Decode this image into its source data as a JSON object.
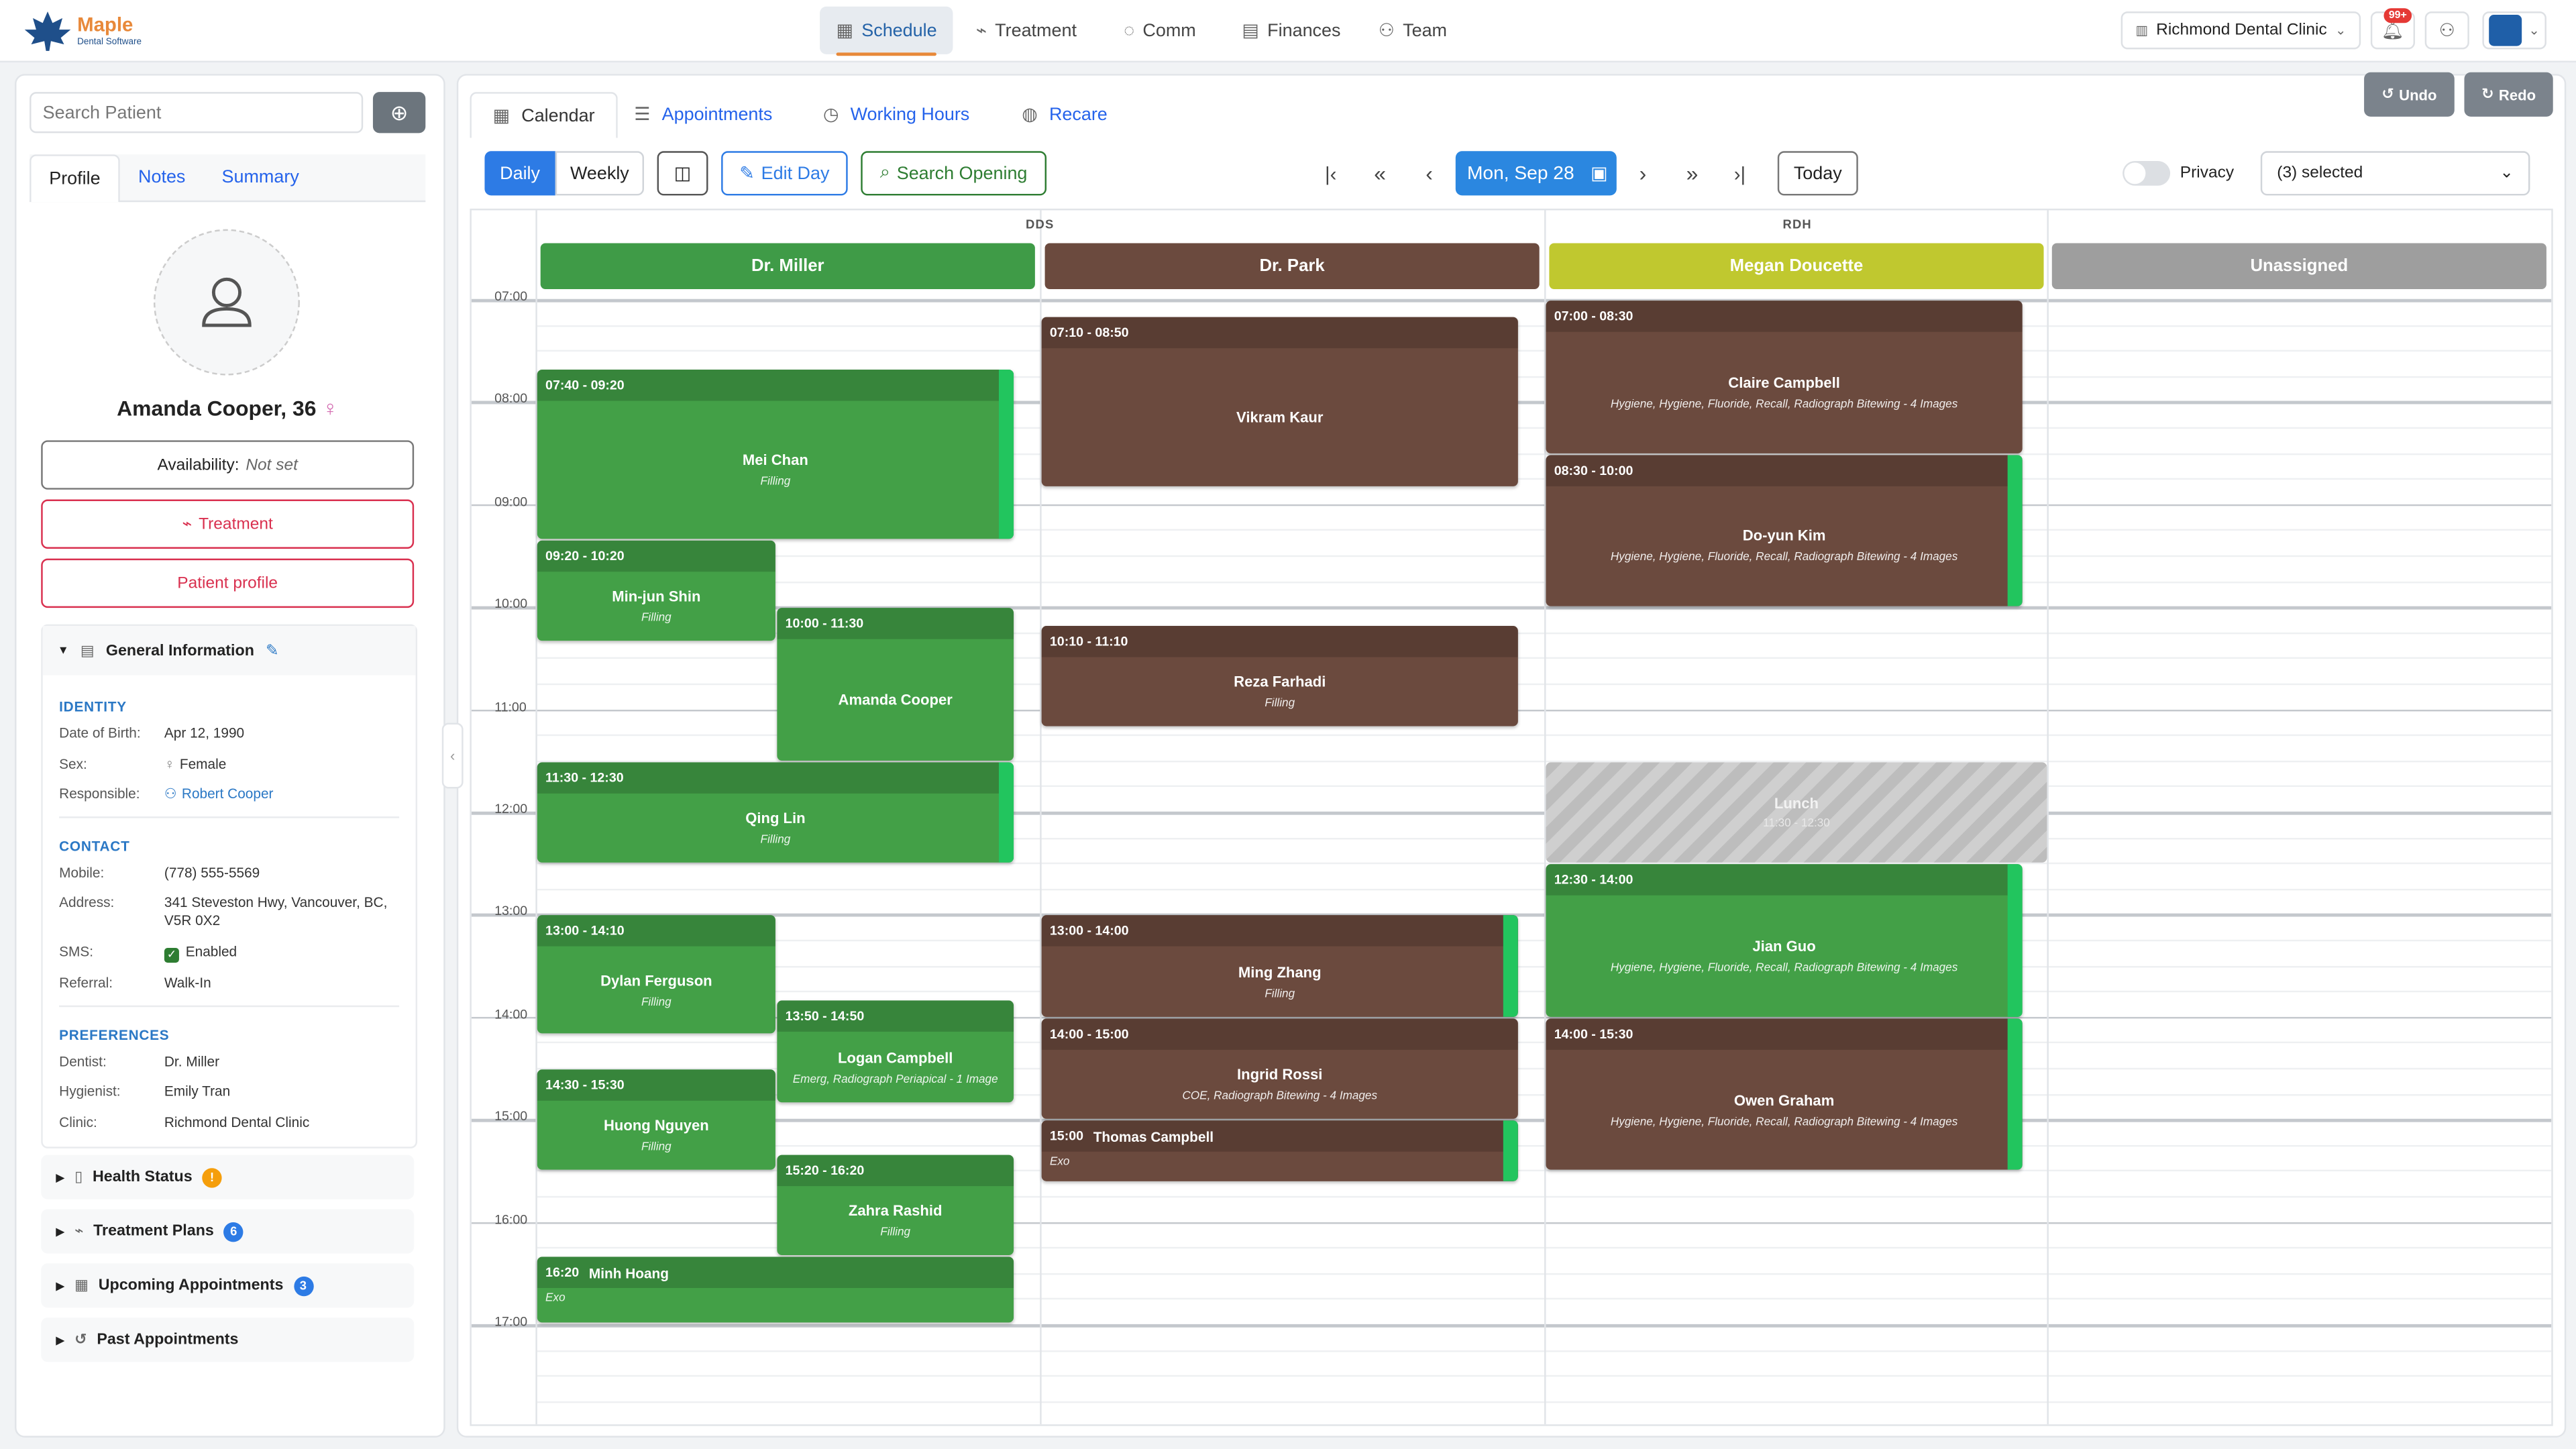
{
  "header": {
    "brand": "Maple",
    "brand_sub": "Dental Software",
    "nav": [
      "Schedule",
      "Treatment",
      "Comm",
      "Finances",
      "Team"
    ],
    "clinic": "Richmond Dental Clinic",
    "notifications": "99+"
  },
  "sidebar": {
    "search_placeholder": "Search Patient",
    "tabs": [
      "Profile",
      "Notes",
      "Summary"
    ],
    "patient_name": "Amanda Cooper, 36",
    "availability_label": "Availability:",
    "availability_value": "Not set",
    "buttons": [
      "Treatment",
      "Patient profile"
    ],
    "general_title": "General Information",
    "sections": [
      {
        "title": "IDENTITY",
        "fields": [
          [
            "Date of Birth:",
            "Apr 12, 1990"
          ],
          [
            "Sex:",
            "Female"
          ],
          [
            "Responsible:",
            "Robert Cooper"
          ]
        ]
      },
      {
        "title": "CONTACT",
        "fields": [
          [
            "Mobile:",
            "(778) 555-5569"
          ],
          [
            "Address:",
            "341 Steveston Hwy, Vancouver, BC, V5R 0X2"
          ],
          [
            "SMS:",
            "Enabled"
          ],
          [
            "Referral:",
            "Walk-In"
          ]
        ]
      },
      {
        "title": "PREFERENCES",
        "fields": [
          [
            "Dentist:",
            "Dr. Miller"
          ],
          [
            "Hygienist:",
            "Emily Tran"
          ],
          [
            "Clinic:",
            "Richmond Dental Clinic"
          ]
        ]
      }
    ],
    "collapsibles": [
      {
        "title": "Health Status",
        "badge": "!"
      },
      {
        "title": "Treatment Plans",
        "badge": 6
      },
      {
        "title": "Upcoming Appointments",
        "badge": 3
      },
      {
        "title": "Past Appointments"
      }
    ]
  },
  "toolbar": {
    "tabs": [
      "Calendar",
      "Appointments",
      "Working Hours",
      "Recare"
    ],
    "undo": "Undo",
    "redo": "Redo",
    "views": [
      "Daily",
      "Weekly"
    ],
    "edit_day": "Edit Day",
    "search_opening": "Search Opening",
    "date": "Mon, Sep 28",
    "today": "Today",
    "privacy": "Privacy",
    "selected": "(3) selected"
  },
  "calendar": {
    "groups": [
      "DDS",
      "RDH"
    ],
    "hours": [
      "07:00",
      "08:00",
      "09:00",
      "10:00",
      "11:00",
      "12:00",
      "13:00",
      "14:00",
      "15:00",
      "16:00",
      "17:00"
    ],
    "providers": [
      {
        "name": "Dr. Miller",
        "color": "#3f9b47",
        "appointments": [
          {
            "time": "07:40 - 09:20",
            "patient": "Mei Chan",
            "detail": "Filling",
            "color": "#43a047"
          },
          {
            "time": "09:20 - 10:20",
            "patient": "Min-jun Shin",
            "detail": "Filling",
            "color": "#43a047"
          },
          {
            "time": "10:00 - 11:30",
            "patient": "Amanda Cooper",
            "color": "#43a047"
          },
          {
            "time": "11:30 - 12:30",
            "patient": "Qing Lin",
            "detail": "Filling",
            "color": "#43a047"
          },
          {
            "time": "13:00 - 14:10",
            "patient": "Dylan Ferguson",
            "detail": "Filling",
            "color": "#43a047"
          },
          {
            "time": "13:50 - 14:50",
            "patient": "Logan Campbell",
            "detail": "Emerg, Radiograph Periapical - 1 Image",
            "color": "#43a047"
          },
          {
            "time": "14:30 - 15:30",
            "patient": "Huong Nguyen",
            "detail": "Filling",
            "color": "#43a047"
          },
          {
            "time": "15:20 - 16:20",
            "patient": "Zahra Rashid",
            "detail": "Filling",
            "color": "#43a047"
          },
          {
            "time": "16:20",
            "patient": "Minh Hoang",
            "detail": "Exo",
            "color": "#43a047"
          }
        ]
      },
      {
        "name": "Dr. Park",
        "color": "#6b4a3e",
        "appointments": [
          {
            "time": "07:10 - 08:50",
            "patient": "Vikram Kaur",
            "color": "#6b4a3e"
          },
          {
            "time": "10:10 - 11:10",
            "patient": "Reza Farhadi",
            "detail": "Filling",
            "color": "#6b4a3e"
          },
          {
            "time": "13:00 - 14:00",
            "patient": "Ming Zhang",
            "detail": "Filling",
            "color": "#6b4a3e"
          },
          {
            "time": "14:00 - 15:00",
            "patient": "Ingrid Rossi",
            "detail": "COE, Radiograph Bitewing - 4 Images",
            "color": "#6b4a3e"
          },
          {
            "time": "15:00",
            "patient": "Thomas Campbell",
            "detail": "Exo",
            "color": "#6b4a3e"
          }
        ]
      },
      {
        "name": "Megan Doucette",
        "color": "#c0c82f",
        "appointments": [
          {
            "time": "07:00 - 08:30",
            "patient": "Claire Campbell",
            "detail": "Hygiene, Hygiene, Fluoride, Recall, Radiograph Bitewing - 4 Images",
            "color": "#6b4a3e"
          },
          {
            "time": "08:30 - 10:00",
            "patient": "Do-yun Kim",
            "detail": "Hygiene, Hygiene, Fluoride, Recall, Radiograph Bitewing - 4 Images",
            "color": "#6b4a3e"
          },
          {
            "time": "11:30 - 12:30",
            "patient": "Lunch",
            "color": "#bdbdbd"
          },
          {
            "time": "12:30 - 14:00",
            "patient": "Jian Guo",
            "detail": "Hygiene, Hygiene, Fluoride, Recall, Radiograph Bitewing - 4 Images",
            "color": "#43a047"
          },
          {
            "time": "14:00 - 15:30",
            "patient": "Owen Graham",
            "detail": "Hygiene, Hygiene, Fluoride, Recall, Radiograph Bitewing - 4 Images",
            "color": "#6b4a3e"
          }
        ]
      },
      {
        "name": "Unassigned",
        "color": "#9e9e9e",
        "appointments": []
      }
    ]
  }
}
